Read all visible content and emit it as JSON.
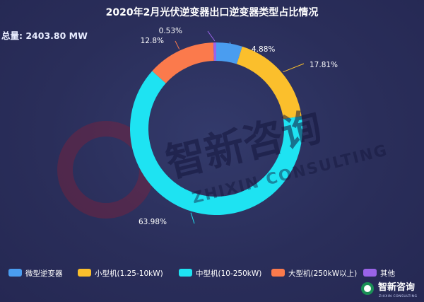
{
  "chart_data": {
    "type": "pie",
    "title": "2020年2月光伏逆变器出口逆变器类型占比情况",
    "total_label": "总量: 2403.80 MW",
    "series": [
      {
        "name": "微型逆变器",
        "value": 4.88,
        "label": "4.88%",
        "color": "#4a9df0"
      },
      {
        "name": "小型机(1.25-10kW)",
        "value": 17.81,
        "label": "17.81%",
        "color": "#fbbf2c"
      },
      {
        "name": "中型机(10-250kW)",
        "value": 63.98,
        "label": "63.98%",
        "color": "#1ee3f2"
      },
      {
        "name": "大型机(250kW以上)",
        "value": 12.8,
        "label": "12.8%",
        "color": "#fb7a4c"
      },
      {
        "name": "其他",
        "value": 0.53,
        "label": "0.53%",
        "color": "#9a63e8"
      }
    ],
    "legend_position": "bottom"
  },
  "watermark": {
    "cn": "智新咨询",
    "en": "ZHIXIN CONSULTING"
  },
  "brand": {
    "cn": "智新咨询",
    "en": "ZHIXIN CONSULTING"
  }
}
